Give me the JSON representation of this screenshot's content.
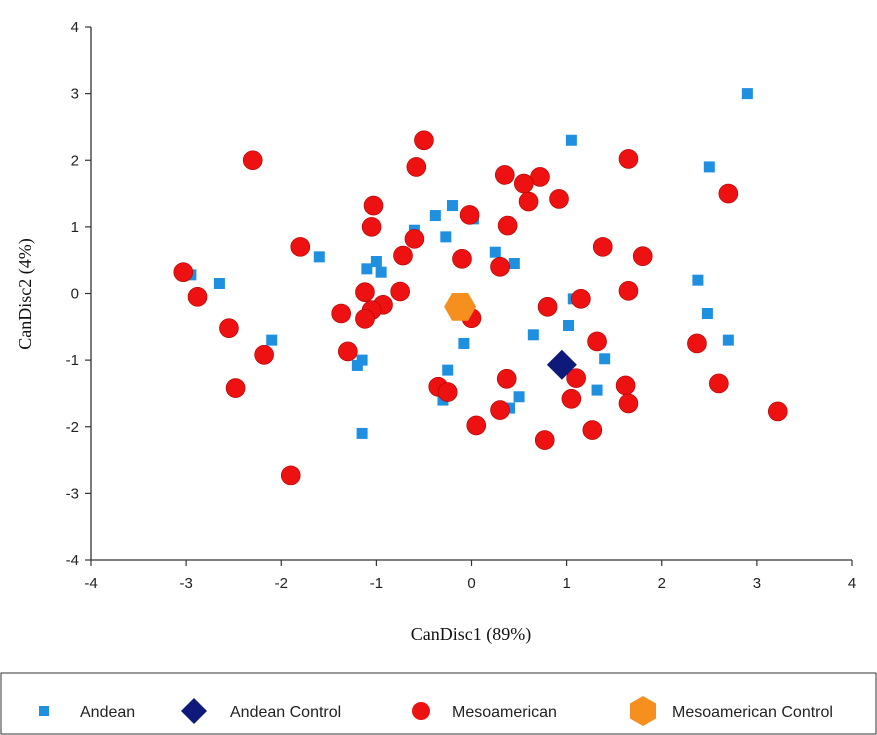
{
  "chart_data": {
    "type": "scatter",
    "xlabel": "CanDisc1 (89%)",
    "ylabel": "CanDisc2 (4%)",
    "xlim": [
      -4,
      4
    ],
    "ylim": [
      -4,
      4
    ],
    "x_ticks": [
      "-4",
      "-3",
      "-2",
      "-1",
      "0",
      "1",
      "2",
      "3",
      "4"
    ],
    "y_ticks": [
      "-4",
      "-3",
      "-2",
      "-1",
      "0",
      "1",
      "2",
      "3",
      "4"
    ],
    "grid": false,
    "legend_position": "bottom",
    "series": [
      {
        "name": "Andean",
        "marker": "square",
        "color": "#1f8fe0",
        "points": [
          [
            2.9,
            3.0
          ],
          [
            1.05,
            2.3
          ],
          [
            2.5,
            1.9
          ],
          [
            -0.2,
            1.32
          ],
          [
            -0.38,
            1.17
          ],
          [
            0.02,
            1.12
          ],
          [
            -0.6,
            0.95
          ],
          [
            -0.27,
            0.85
          ],
          [
            0.25,
            0.62
          ],
          [
            0.45,
            0.45
          ],
          [
            -1.6,
            0.55
          ],
          [
            -1.0,
            0.48
          ],
          [
            -1.1,
            0.37
          ],
          [
            -0.95,
            0.32
          ],
          [
            -2.95,
            0.28
          ],
          [
            -2.65,
            0.15
          ],
          [
            2.38,
            0.2
          ],
          [
            1.07,
            -0.08
          ],
          [
            2.48,
            -0.3
          ],
          [
            1.02,
            -0.48
          ],
          [
            0.65,
            -0.62
          ],
          [
            2.7,
            -0.7
          ],
          [
            -2.1,
            -0.7
          ],
          [
            -0.08,
            -0.75
          ],
          [
            1.4,
            -0.98
          ],
          [
            -1.15,
            -1.0
          ],
          [
            -1.2,
            -1.08
          ],
          [
            -0.25,
            -1.15
          ],
          [
            1.32,
            -1.45
          ],
          [
            0.5,
            -1.55
          ],
          [
            -0.3,
            -1.6
          ],
          [
            0.4,
            -1.72
          ],
          [
            -1.15,
            -2.1
          ]
        ]
      },
      {
        "name": "Andean Control",
        "marker": "diamond",
        "color": "#0d1a7a",
        "points": [
          [
            0.95,
            -1.07
          ]
        ]
      },
      {
        "name": "Mesoamerican",
        "marker": "circle",
        "color": "#ee1111",
        "points": [
          [
            -0.5,
            2.3
          ],
          [
            -2.3,
            2.0
          ],
          [
            1.65,
            2.02
          ],
          [
            -0.58,
            1.9
          ],
          [
            0.35,
            1.78
          ],
          [
            0.72,
            1.75
          ],
          [
            0.55,
            1.65
          ],
          [
            0.92,
            1.42
          ],
          [
            2.7,
            1.5
          ],
          [
            0.6,
            1.38
          ],
          [
            -1.03,
            1.32
          ],
          [
            -0.02,
            1.18
          ],
          [
            0.38,
            1.02
          ],
          [
            -1.05,
            1.0
          ],
          [
            -0.6,
            0.82
          ],
          [
            -1.8,
            0.7
          ],
          [
            1.38,
            0.7
          ],
          [
            -0.72,
            0.57
          ],
          [
            1.8,
            0.56
          ],
          [
            -0.1,
            0.52
          ],
          [
            0.3,
            0.4
          ],
          [
            -3.03,
            0.32
          ],
          [
            -0.75,
            0.03
          ],
          [
            1.65,
            0.04
          ],
          [
            -2.88,
            -0.05
          ],
          [
            -1.12,
            0.02
          ],
          [
            1.15,
            -0.08
          ],
          [
            -0.93,
            -0.17
          ],
          [
            0.8,
            -0.2
          ],
          [
            -1.05,
            -0.25
          ],
          [
            -1.37,
            -0.3
          ],
          [
            -1.12,
            -0.38
          ],
          [
            0.0,
            -0.37
          ],
          [
            -2.55,
            -0.52
          ],
          [
            1.32,
            -0.72
          ],
          [
            2.37,
            -0.75
          ],
          [
            -1.3,
            -0.87
          ],
          [
            -2.18,
            -0.92
          ],
          [
            1.1,
            -1.27
          ],
          [
            0.37,
            -1.28
          ],
          [
            2.6,
            -1.35
          ],
          [
            -0.35,
            -1.4
          ],
          [
            1.62,
            -1.38
          ],
          [
            -2.48,
            -1.42
          ],
          [
            -0.25,
            -1.48
          ],
          [
            1.05,
            -1.58
          ],
          [
            1.65,
            -1.65
          ],
          [
            0.3,
            -1.75
          ],
          [
            3.22,
            -1.77
          ],
          [
            0.05,
            -1.98
          ],
          [
            1.27,
            -2.05
          ],
          [
            0.77,
            -2.2
          ],
          [
            -1.9,
            -2.73
          ]
        ]
      },
      {
        "name": "Mesoamerican Control",
        "marker": "hexagon",
        "color": "#f5901e",
        "points": [
          [
            -0.12,
            -0.2
          ]
        ]
      }
    ]
  }
}
